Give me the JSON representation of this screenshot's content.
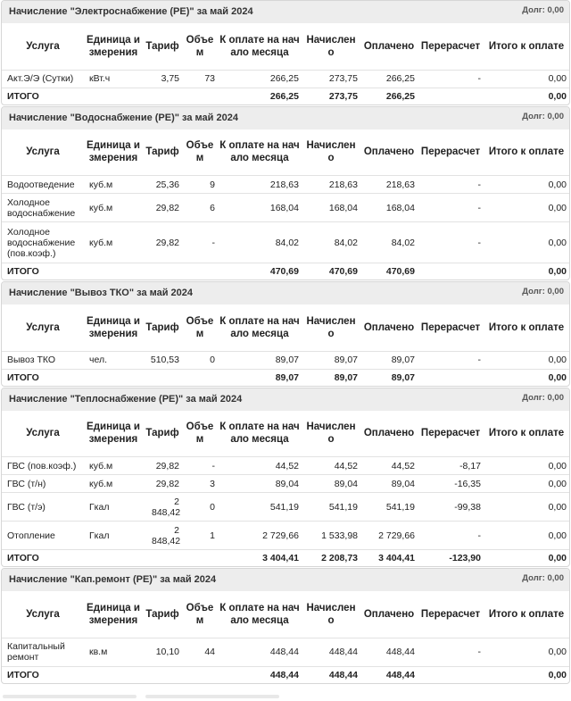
{
  "headers": [
    "Услуга",
    "Единица измерения",
    "Тариф",
    "Объем",
    "К оплате на начало месяца",
    "Начислено",
    "Оплачено",
    "Перерасчет",
    "Итого к оплате"
  ],
  "headers_alt_tariff": "Тариф",
  "sections": [
    {
      "title": "Начисление \"Электроснабжение (РЕ)\" за май 2024",
      "debt": "Долг: 0,00",
      "rows": [
        {
          "service": "Акт.Э/Э (Сутки)",
          "unit": "кВт.ч",
          "tariff": "3,75",
          "volume": "73",
          "start": "266,25",
          "accrued": "273,75",
          "paid": "266,25",
          "recalc": "-",
          "total": "0,00"
        }
      ],
      "total": {
        "label": "ИТОГО",
        "start": "266,25",
        "accrued": "273,75",
        "paid": "266,25",
        "recalc": "",
        "total": "0,00"
      }
    },
    {
      "title": "Начисление \"Водоснабжение (РЕ)\" за май 2024",
      "debt": "Долг: 0,00",
      "rows": [
        {
          "service": "Водоотведение",
          "unit": "куб.м",
          "tariff": "25,36",
          "volume": "9",
          "start": "218,63",
          "accrued": "218,63",
          "paid": "218,63",
          "recalc": "-",
          "total": "0,00"
        },
        {
          "service": "Холодное водоснабжение",
          "unit": "куб.м",
          "tariff": "29,82",
          "volume": "6",
          "start": "168,04",
          "accrued": "168,04",
          "paid": "168,04",
          "recalc": "-",
          "total": "0,00"
        },
        {
          "service": "Холодное водоснабжение (пов.коэф.)",
          "unit": "куб.м",
          "tariff": "29,82",
          "volume": "-",
          "start": "84,02",
          "accrued": "84,02",
          "paid": "84,02",
          "recalc": "-",
          "total": "0,00"
        }
      ],
      "total": {
        "label": "ИТОГО",
        "start": "470,69",
        "accrued": "470,69",
        "paid": "470,69",
        "recalc": "",
        "total": "0,00"
      }
    },
    {
      "title": "Начисление \"Вывоз ТКО\" за май 2024",
      "debt": "Долг: 0,00",
      "rows": [
        {
          "service": "Вывоз ТКО",
          "unit": "чел.",
          "tariff": "510,53",
          "volume": "0",
          "start": "89,07",
          "accrued": "89,07",
          "paid": "89,07",
          "recalc": "-",
          "total": "0,00"
        }
      ],
      "total": {
        "label": "ИТОГО",
        "start": "89,07",
        "accrued": "89,07",
        "paid": "89,07",
        "recalc": "",
        "total": "0,00"
      }
    },
    {
      "title": "Начисление \"Теплоснабжение (РЕ)\" за май 2024",
      "debt": "Долг: 0,00",
      "rows": [
        {
          "service": "ГВС (пов.коэф.)",
          "unit": "куб.м",
          "tariff": "29,82",
          "volume": "-",
          "start": "44,52",
          "accrued": "44,52",
          "paid": "44,52",
          "recalc": "-8,17",
          "total": "0,00"
        },
        {
          "service": "ГВС (т/н)",
          "unit": "куб.м",
          "tariff": "29,82",
          "volume": "3",
          "start": "89,04",
          "accrued": "89,04",
          "paid": "89,04",
          "recalc": "-16,35",
          "total": "0,00"
        },
        {
          "service": "ГВС (т/э)",
          "unit": "Гкал",
          "tariff": "2 848,42",
          "volume": "0",
          "start": "541,19",
          "accrued": "541,19",
          "paid": "541,19",
          "recalc": "-99,38",
          "total": "0,00"
        },
        {
          "service": "Отопление",
          "unit": "Гкал",
          "tariff": "2 848,42",
          "volume": "1",
          "start": "2 729,66",
          "accrued": "1 533,98",
          "paid": "2 729,66",
          "recalc": "-",
          "total": "0,00"
        }
      ],
      "total": {
        "label": "ИТОГО",
        "start": "3 404,41",
        "accrued": "2 208,73",
        "paid": "3 404,41",
        "recalc": "-123,90",
        "total": "0,00"
      }
    },
    {
      "title": "Начисление \"Кап.ремонт (РЕ)\" за май 2024",
      "debt": "Долг: 0,00",
      "rows": [
        {
          "service": "Капитальный ремонт",
          "unit": "кв.м",
          "tariff": "10,10",
          "volume": "44",
          "start": "448,44",
          "accrued": "448,44",
          "paid": "448,44",
          "recalc": "-",
          "total": "0,00"
        }
      ],
      "total": {
        "label": "ИТОГО",
        "start": "448,44",
        "accrued": "448,44",
        "paid": "448,44",
        "recalc": "",
        "total": "0,00"
      }
    }
  ]
}
